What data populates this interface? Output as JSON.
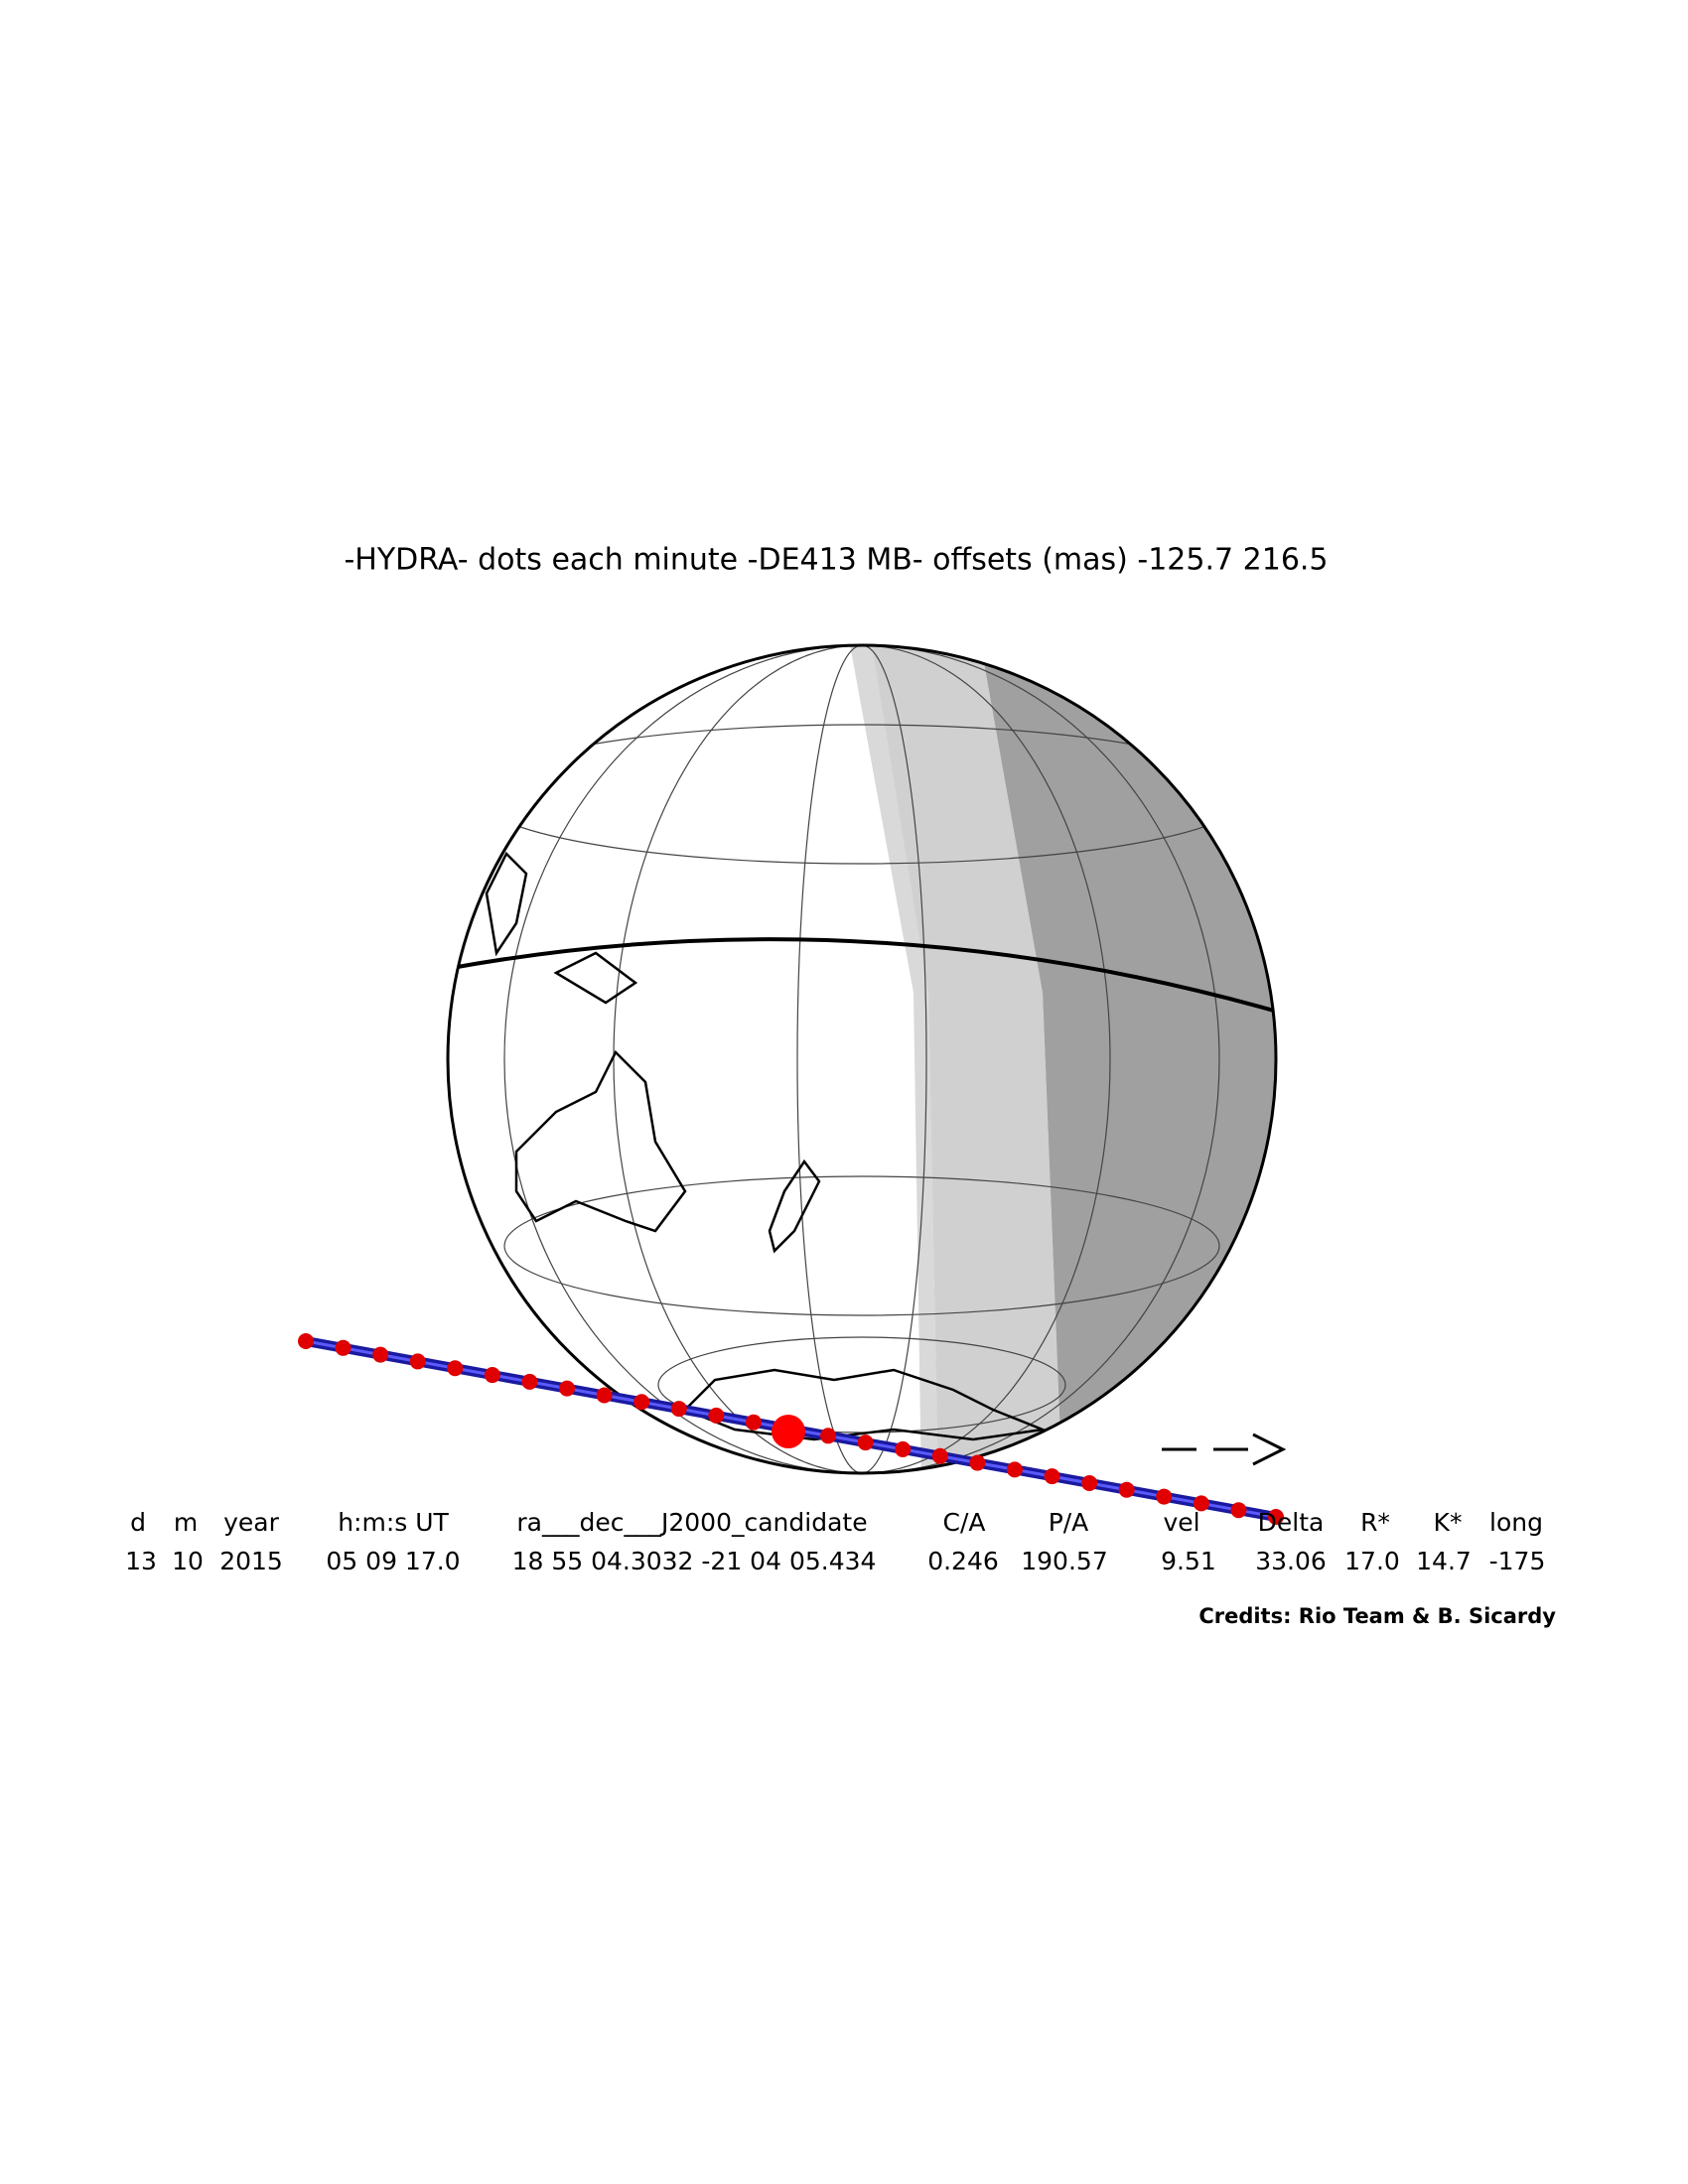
{
  "title": "-HYDRA- dots each minute -DE413 MB- offsets (mas) -125.7  216.5",
  "table": {
    "headers": [
      "d",
      "m",
      "year",
      "h:m:s UT",
      "ra___dec___J2000_candidate",
      "C/A",
      "P/A",
      "vel",
      "Delta",
      "R*",
      "K*",
      "long"
    ],
    "values": [
      "13",
      "10",
      "2015",
      "05 09 17.0",
      "18 55 04.3032 -21 04 05.434",
      "0.246",
      "190.57",
      "9.51",
      "33.06",
      "17.0",
      "14.7",
      "-175"
    ]
  },
  "credits": "Credits: Rio Team & B. Sicardy"
}
